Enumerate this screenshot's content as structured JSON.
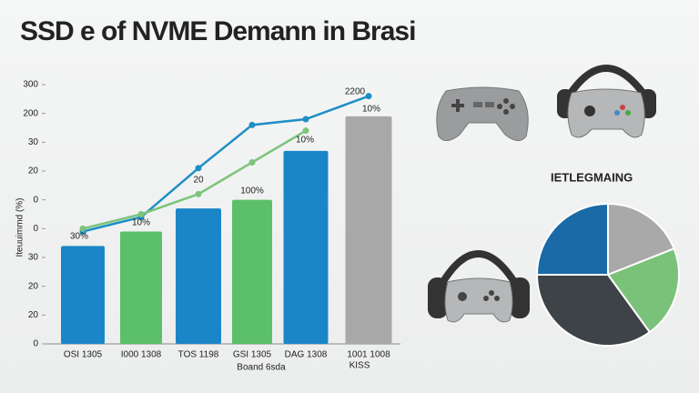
{
  "chart_data": [
    {
      "type": "bar",
      "title": "SSD e of NVME Demann in Brasi",
      "categories": [
        "OSI 1305",
        "I000 1308",
        "TOS 1198",
        "GSI 1305",
        "DAG 1308",
        "1001 1008"
      ],
      "values": [
        3.4,
        3.9,
        4.7,
        5.0,
        6.7,
        7.9
      ],
      "colors": [
        "#1a86c8",
        "#5cc06a",
        "#1a86c8",
        "#5cc06a",
        "#1a86c8",
        "#a8a8a8"
      ],
      "lines": [
        {
          "color": "#1d8fc4",
          "values": [
            3.9,
            4.4,
            6.1,
            7.6,
            7.8,
            8.6
          ]
        },
        {
          "color": "#7cc47c",
          "values": [
            4.0,
            4.5,
            5.2,
            6.3,
            7.4,
            null
          ]
        }
      ],
      "annotations": [
        "30%",
        "10%",
        "20",
        "100%",
        "10%",
        "10%",
        "2200",
        "KISS"
      ],
      "x_label": "Boand 6sda",
      "y_label": "Iteuuimmd (%)",
      "ylim": [
        0,
        9
      ],
      "yticks": [
        {
          "value": 0,
          "label": "0"
        },
        {
          "value": 1,
          "label": "20"
        },
        {
          "value": 2,
          "label": "20"
        },
        {
          "value": 3,
          "label": "30"
        },
        {
          "value": 4,
          "label": "0"
        },
        {
          "value": 5,
          "label": "0"
        },
        {
          "value": 6,
          "label": "20"
        },
        {
          "value": 7,
          "label": "30"
        },
        {
          "value": 8,
          "label": "200"
        },
        {
          "value": 9,
          "label": "300"
        }
      ]
    },
    {
      "type": "pie",
      "title": "IETLEGMAING",
      "values": [
        19,
        21,
        35,
        25
      ],
      "colors": [
        "#a9a9a9",
        "#7ac27a",
        "#3e4347",
        "#1a6aa8"
      ]
    }
  ]
}
